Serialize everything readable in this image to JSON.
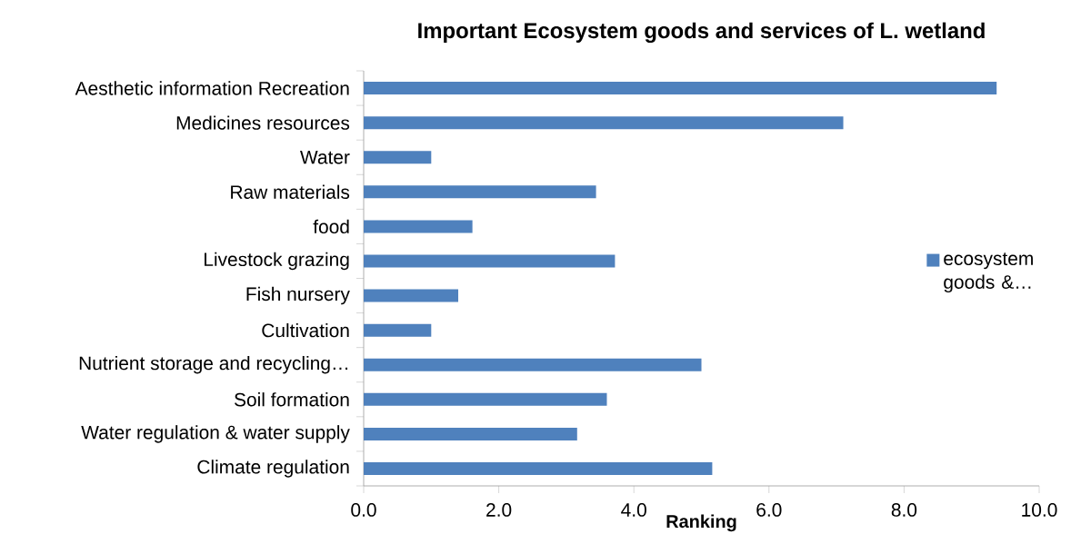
{
  "chart_data": {
    "type": "bar",
    "orientation": "horizontal",
    "title": "Important Ecosystem goods and services of L. wetland",
    "xlabel": "Ranking",
    "categories": [
      "Aesthetic information Recreation",
      "Medicines resources",
      "Water",
      "Raw materials",
      "food",
      "Livestock grazing",
      "Fish nursery",
      "Cultivation",
      "Nutrient storage and recycling…",
      "Soil formation",
      "Water regulation & water supply",
      "Climate regulation"
    ],
    "series": [
      {
        "name": "ecosystem goods &…",
        "color": "#4f81bd",
        "values": [
          9.37,
          7.1,
          1.0,
          3.44,
          1.61,
          3.72,
          1.4,
          1.0,
          5.0,
          3.6,
          3.16,
          5.16
        ]
      }
    ],
    "xlim": [
      0,
      10
    ],
    "xticks": [
      {
        "value": 0,
        "label": "0.0"
      },
      {
        "value": 2,
        "label": "2.0"
      },
      {
        "value": 4,
        "label": "4.0"
      },
      {
        "value": 6,
        "label": "6.0"
      },
      {
        "value": 8,
        "label": "8.0"
      },
      {
        "value": 10,
        "label": "10.0"
      }
    ],
    "legend": "right",
    "grid": false
  }
}
